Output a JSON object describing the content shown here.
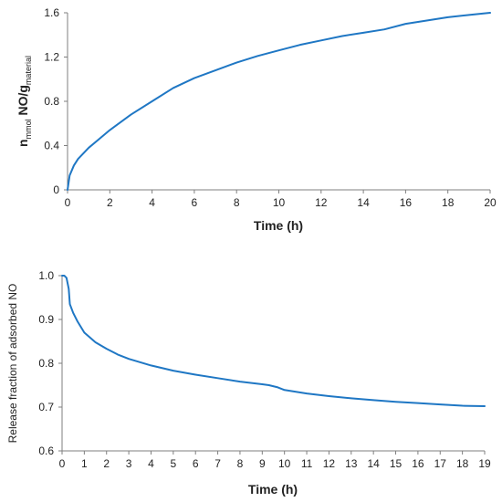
{
  "colors": {
    "line": "#1f77c4",
    "axis": "#7f7f7f",
    "text": "#222222"
  },
  "chart_data": [
    {
      "type": "line",
      "xlabel": "Time (h)",
      "ylabel": {
        "n": "n",
        "n_sub": "mmol",
        "mid": " NO/g",
        "g_sub": "material"
      },
      "xlim": [
        0,
        20
      ],
      "ylim": [
        0,
        1.6
      ],
      "x_ticks": [
        "0",
        "2",
        "4",
        "6",
        "8",
        "10",
        "12",
        "14",
        "16",
        "18",
        "20"
      ],
      "y_ticks": [
        "0",
        "0.4",
        "0.8",
        "1.2",
        "1.6"
      ],
      "grid": false,
      "series": [
        {
          "x": [
            0,
            0.1,
            0.3,
            0.5,
            1,
            1.5,
            2,
            3,
            4,
            5,
            6,
            7,
            8,
            9,
            10,
            11,
            12,
            13,
            14,
            15,
            16,
            17,
            18,
            19,
            20
          ],
          "y": [
            0,
            0.13,
            0.22,
            0.28,
            0.38,
            0.46,
            0.54,
            0.68,
            0.8,
            0.92,
            1.01,
            1.08,
            1.15,
            1.21,
            1.26,
            1.31,
            1.35,
            1.39,
            1.42,
            1.45,
            1.5,
            1.53,
            1.56,
            1.58,
            1.6
          ]
        }
      ]
    },
    {
      "type": "line",
      "xlabel": "Time (h)",
      "ylabel": "Release fraction of adsorbed NO",
      "xlim": [
        0,
        19
      ],
      "ylim": [
        0.6,
        1.0
      ],
      "x_ticks": [
        "0",
        "1",
        "2",
        "3",
        "4",
        "5",
        "6",
        "7",
        "8",
        "9",
        "10",
        "11",
        "12",
        "13",
        "14",
        "15",
        "16",
        "17",
        "18",
        "19"
      ],
      "y_ticks": [
        "0.6",
        "0.7",
        "0.8",
        "0.9",
        "1.0"
      ],
      "grid": false,
      "series": [
        {
          "x": [
            0,
            0.1,
            0.2,
            0.3,
            0.35,
            0.5,
            0.7,
            1,
            1.5,
            2,
            2.5,
            3,
            4,
            5,
            6,
            7,
            8,
            9,
            9.3,
            9.7,
            10,
            11,
            12,
            13,
            14,
            15,
            16,
            17,
            18,
            19
          ],
          "y": [
            1.0,
            1.0,
            0.995,
            0.97,
            0.935,
            0.915,
            0.895,
            0.87,
            0.848,
            0.833,
            0.82,
            0.81,
            0.795,
            0.783,
            0.774,
            0.766,
            0.758,
            0.752,
            0.75,
            0.745,
            0.739,
            0.731,
            0.725,
            0.72,
            0.716,
            0.712,
            0.709,
            0.706,
            0.703,
            0.702
          ]
        }
      ]
    }
  ]
}
